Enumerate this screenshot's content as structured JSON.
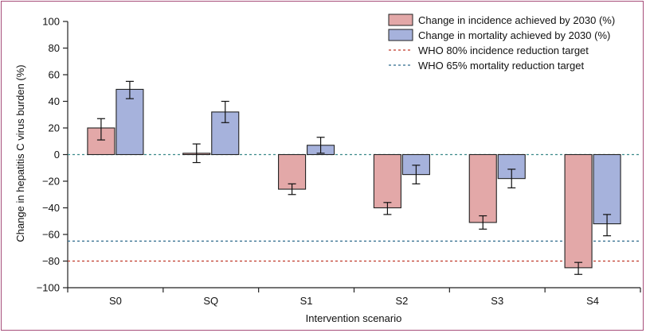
{
  "chart_data": {
    "type": "bar",
    "xlabel": "Intervention scenario",
    "ylabel": "Change in hepatitis C virus burden (%)",
    "ylim": [
      -100,
      100
    ],
    "yticks": [
      100,
      80,
      60,
      40,
      20,
      0,
      -20,
      -40,
      -60,
      -80,
      -100
    ],
    "ytick_labels": [
      "100",
      "80",
      "60",
      "40",
      "20",
      "0",
      "−20",
      "−40",
      "−60",
      "−80",
      "−100"
    ],
    "categories": [
      "S0",
      "SQ",
      "S1",
      "S2",
      "S3",
      "S4"
    ],
    "series": [
      {
        "name": "Change in incidence achieved by 2030 (%)",
        "color": "#e3a8a8",
        "values": [
          20,
          1,
          -26,
          -40,
          -51,
          -85
        ],
        "err_low": [
          11,
          -6,
          -30,
          -45,
          -56,
          -90
        ],
        "err_high": [
          27,
          8,
          -22,
          -36,
          -46,
          -81
        ]
      },
      {
        "name": "Change in mortality achieved by 2030 (%)",
        "color": "#a6b2dc",
        "values": [
          49,
          32,
          7,
          -15,
          -18,
          -52
        ],
        "err_low": [
          42,
          24,
          1,
          -22,
          -25,
          -61
        ],
        "err_high": [
          55,
          40,
          13,
          -8,
          -11,
          -45
        ]
      }
    ],
    "reference_lines": [
      {
        "name": "WHO 80% incidence reduction target",
        "y": -80,
        "color": "#c0392b"
      },
      {
        "name": "WHO 65% mortality reduction target",
        "y": -65,
        "color": "#2e6b8e"
      },
      {
        "name": "",
        "y": 0,
        "color": "#3b8a8a"
      }
    ],
    "legend_position": "top-right",
    "grid": false
  }
}
